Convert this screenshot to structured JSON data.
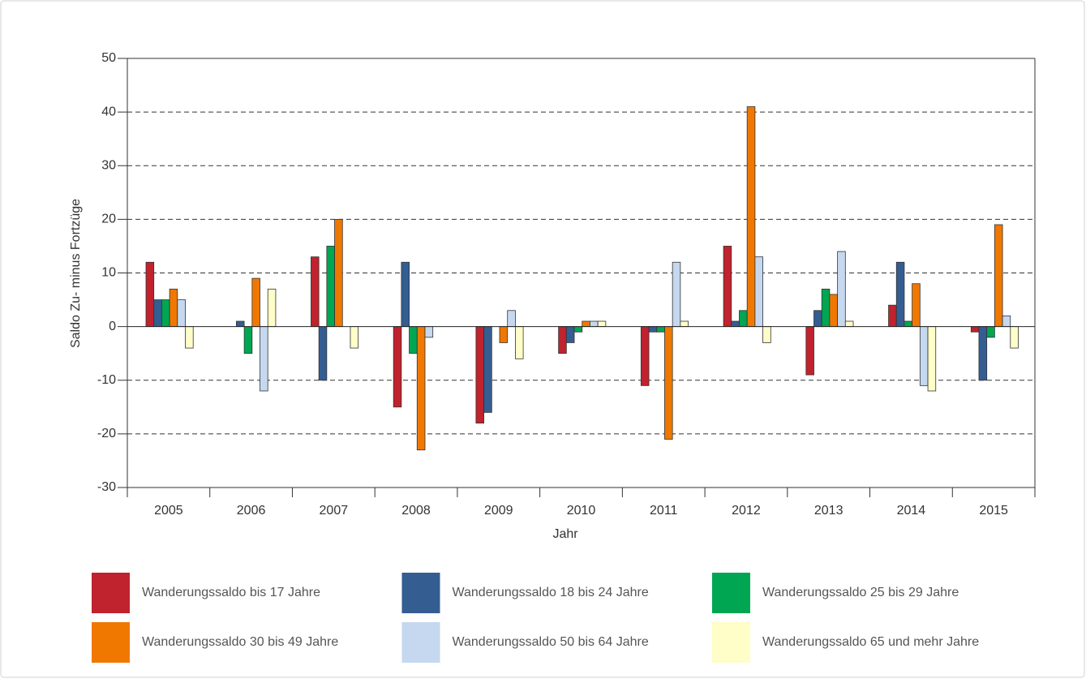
{
  "chart_data": {
    "type": "bar",
    "x_label": "Jahr",
    "y_label": "Saldo Zu- minus Fortzüge",
    "categories": [
      "2005",
      "2006",
      "2007",
      "2008",
      "2009",
      "2010",
      "2011",
      "2012",
      "2013",
      "2014",
      "2015"
    ],
    "series": [
      {
        "name": "Wanderungssaldo bis 17 Jahre",
        "color": "#c0222e",
        "values": [
          12,
          0,
          13,
          -15,
          -18,
          -5,
          -11,
          15,
          -9,
          4,
          -1
        ]
      },
      {
        "name": "Wanderungssaldo 18 bis 24 Jahre",
        "color": "#345d92",
        "values": [
          5,
          1,
          -10,
          12,
          -16,
          -3,
          -1,
          1,
          3,
          12,
          -10
        ]
      },
      {
        "name": "Wanderungssaldo 25 bis 29 Jahre",
        "color": "#00a651",
        "values": [
          5,
          -5,
          15,
          -5,
          0,
          -1,
          -1,
          3,
          7,
          1,
          -2
        ]
      },
      {
        "name": "Wanderungssaldo 30 bis 49 Jahre",
        "color": "#f07800",
        "values": [
          7,
          9,
          20,
          -23,
          -3,
          1,
          -21,
          41,
          6,
          8,
          19
        ]
      },
      {
        "name": "Wanderungssaldo 50 bis 64 Jahre",
        "color": "#c5d8ef",
        "values": [
          5,
          -12,
          0,
          -2,
          3,
          1,
          12,
          13,
          14,
          -11,
          2
        ]
      },
      {
        "name": "Wanderungssaldo 65 und mehr Jahre",
        "color": "#fffdc8",
        "values": [
          -4,
          7,
          -4,
          0,
          -6,
          1,
          1,
          -3,
          1,
          -12,
          -4
        ]
      }
    ],
    "ylim": [
      -30,
      50
    ],
    "yticks": [
      -30,
      -20,
      -10,
      0,
      10,
      20,
      30,
      40,
      50
    ],
    "grid": true,
    "legend": "bottom"
  }
}
